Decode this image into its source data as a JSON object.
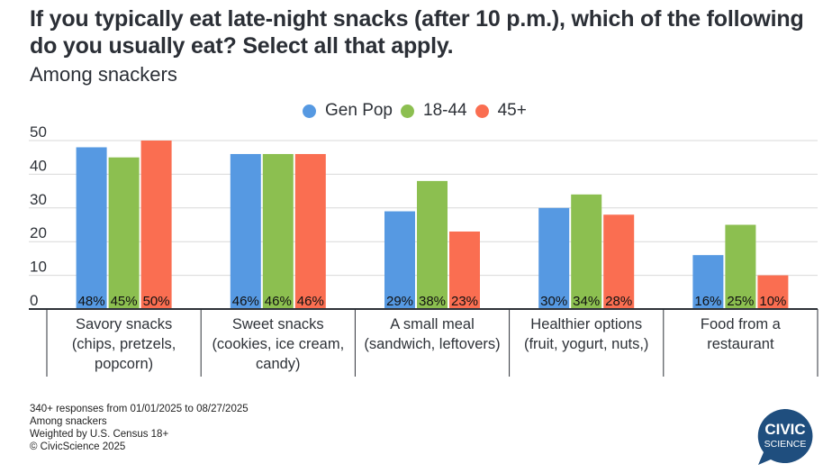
{
  "title": "If you typically eat late-night snacks (after 10 p.m.), which of the following do you usually eat? Select all that apply.",
  "subtitle": "Among snackers",
  "legend": [
    {
      "label": "Gen Pop",
      "color": "#5699e2"
    },
    {
      "label": "18-44",
      "color": "#8cbf50"
    },
    {
      "label": "45+",
      "color": "#fa6e51"
    }
  ],
  "chart_data": {
    "type": "bar",
    "title": "If you typically eat late-night snacks (after 10 p.m.), which of the following do you usually eat? Select all that apply.",
    "subtitle": "Among snackers",
    "categories": [
      [
        "Savory snacks",
        "(chips, pretzels,",
        "popcorn)"
      ],
      [
        "Sweet snacks",
        "(cookies, ice cream,",
        "candy)"
      ],
      [
        "A small meal",
        "(sandwich, leftovers)"
      ],
      [
        "Healthier options",
        "(fruit, yogurt, nuts,)"
      ],
      [
        "Food from a",
        "restaurant"
      ]
    ],
    "series": [
      {
        "name": "Gen Pop",
        "color": "#5699e2",
        "values": [
          48,
          46,
          29,
          30,
          16
        ]
      },
      {
        "name": "18-44",
        "color": "#8cbf50",
        "values": [
          45,
          46,
          38,
          34,
          25
        ]
      },
      {
        "name": "45+",
        "color": "#fa6e51",
        "values": [
          50,
          46,
          23,
          28,
          10
        ]
      }
    ],
    "data_label_suffix": "%",
    "yticks": [
      0,
      10,
      20,
      30,
      40,
      50
    ],
    "ylim": [
      0,
      50
    ],
    "xlabel": "",
    "ylabel": "",
    "grid": true,
    "legend_position": "top-center"
  },
  "footer": [
    "340+ responses from 01/01/2025 to 08/27/2025",
    "Among snackers",
    "Weighted by U.S. Census 18+",
    "© CivicScience 2025"
  ],
  "logo": {
    "line1": "CIVIC",
    "line2": "SCIENCE",
    "color": "#1f4e7e"
  }
}
